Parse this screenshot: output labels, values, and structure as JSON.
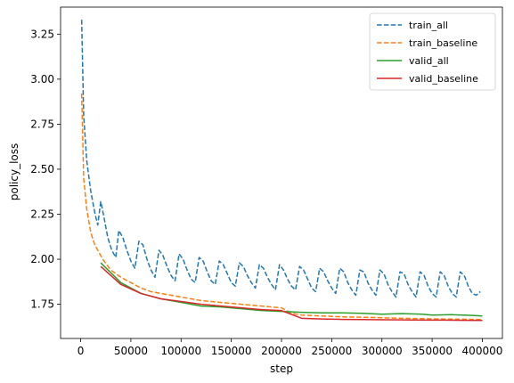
{
  "chart_data": {
    "type": "line",
    "xlabel": "step",
    "ylabel": "policy_loss",
    "xlim": [
      -20000,
      420000
    ],
    "ylim": [
      1.56,
      3.4
    ],
    "xticks": [
      0,
      50000,
      100000,
      150000,
      200000,
      250000,
      300000,
      350000,
      400000
    ],
    "xtick_labels": [
      "0",
      "50000",
      "100000",
      "150000",
      "200000",
      "250000",
      "300000",
      "350000",
      "400000"
    ],
    "yticks": [
      1.75,
      2.0,
      2.25,
      2.5,
      2.75,
      3.0,
      3.25
    ],
    "ytick_labels": [
      "1.75",
      "2.00",
      "2.25",
      "2.50",
      "2.75",
      "3.00",
      "3.25"
    ],
    "grid": false,
    "legend_position": "top-right",
    "series": [
      {
        "name": "train_all",
        "color": "#1f77b4",
        "style": "dashed",
        "x": [
          1000,
          3000,
          6000,
          10000,
          14000,
          17000,
          20000,
          23000,
          27000,
          31000,
          35000,
          38000,
          42000,
          46000,
          50000,
          54000,
          58000,
          62000,
          66000,
          70000,
          74000,
          78000,
          82000,
          86000,
          90000,
          94000,
          98000,
          102000,
          106000,
          110000,
          114000,
          118000,
          122000,
          126000,
          130000,
          134000,
          138000,
          142000,
          146000,
          150000,
          154000,
          158000,
          162000,
          166000,
          170000,
          174000,
          178000,
          182000,
          186000,
          190000,
          194000,
          198000,
          202000,
          206000,
          210000,
          214000,
          218000,
          222000,
          226000,
          230000,
          234000,
          238000,
          242000,
          246000,
          250000,
          254000,
          258000,
          262000,
          266000,
          270000,
          274000,
          278000,
          282000,
          286000,
          290000,
          294000,
          298000,
          302000,
          306000,
          310000,
          314000,
          318000,
          322000,
          326000,
          330000,
          334000,
          338000,
          342000,
          346000,
          350000,
          354000,
          358000,
          362000,
          366000,
          370000,
          374000,
          378000,
          382000,
          386000,
          390000,
          394000,
          398000
        ],
        "values": [
          3.33,
          2.8,
          2.55,
          2.38,
          2.26,
          2.19,
          2.32,
          2.24,
          2.12,
          2.05,
          2.01,
          2.16,
          2.12,
          2.05,
          1.99,
          1.95,
          2.1,
          2.08,
          2.0,
          1.94,
          1.9,
          2.05,
          2.02,
          1.96,
          1.91,
          1.88,
          2.03,
          2.0,
          1.94,
          1.89,
          1.87,
          2.01,
          1.99,
          1.93,
          1.88,
          1.86,
          1.99,
          1.97,
          1.92,
          1.87,
          1.85,
          1.98,
          1.96,
          1.91,
          1.87,
          1.84,
          1.97,
          1.95,
          1.9,
          1.86,
          1.83,
          1.97,
          1.94,
          1.89,
          1.85,
          1.83,
          1.96,
          1.94,
          1.89,
          1.84,
          1.82,
          1.95,
          1.93,
          1.88,
          1.84,
          1.81,
          1.95,
          1.93,
          1.87,
          1.83,
          1.8,
          1.94,
          1.93,
          1.87,
          1.83,
          1.8,
          1.94,
          1.92,
          1.86,
          1.82,
          1.79,
          1.93,
          1.92,
          1.86,
          1.82,
          1.79,
          1.93,
          1.91,
          1.85,
          1.81,
          1.79,
          1.93,
          1.91,
          1.85,
          1.81,
          1.79,
          1.93,
          1.91,
          1.85,
          1.81,
          1.8,
          1.82
        ]
      },
      {
        "name": "train_baseline",
        "color": "#ff7f0e",
        "style": "dashed",
        "x": [
          1000,
          3000,
          6000,
          10000,
          14000,
          18000,
          22000,
          26000,
          30000,
          35000,
          40000,
          50000,
          60000,
          70000,
          80000,
          90000,
          100000,
          110000,
          120000,
          130000,
          140000,
          150000,
          160000,
          170000,
          180000,
          190000,
          200000,
          210000,
          220000,
          240000,
          260000,
          280000,
          300000,
          320000,
          340000,
          360000,
          380000,
          400000
        ],
        "values": [
          2.92,
          2.45,
          2.28,
          2.15,
          2.08,
          2.04,
          2.0,
          1.97,
          1.94,
          1.92,
          1.9,
          1.87,
          1.84,
          1.82,
          1.81,
          1.8,
          1.79,
          1.78,
          1.77,
          1.765,
          1.76,
          1.755,
          1.75,
          1.745,
          1.74,
          1.735,
          1.73,
          1.7,
          1.69,
          1.685,
          1.68,
          1.678,
          1.675,
          1.672,
          1.67,
          1.668,
          1.667,
          1.665
        ]
      },
      {
        "name": "valid_all",
        "color": "#2ca02c",
        "style": "solid",
        "x": [
          20000,
          40000,
          60000,
          80000,
          100000,
          120000,
          140000,
          160000,
          180000,
          200000,
          220000,
          240000,
          260000,
          280000,
          300000,
          320000,
          340000,
          350000,
          370000,
          390000,
          400000
        ],
        "values": [
          1.98,
          1.87,
          1.81,
          1.78,
          1.76,
          1.74,
          1.735,
          1.725,
          1.715,
          1.71,
          1.705,
          1.702,
          1.702,
          1.7,
          1.695,
          1.698,
          1.695,
          1.69,
          1.692,
          1.688,
          1.685
        ]
      },
      {
        "name": "valid_baseline",
        "color": "#d62728",
        "style": "solid",
        "x": [
          20000,
          40000,
          60000,
          80000,
          100000,
          120000,
          140000,
          160000,
          180000,
          200000,
          220000,
          240000,
          260000,
          280000,
          300000,
          320000,
          340000,
          360000,
          380000,
          400000
        ],
        "values": [
          1.96,
          1.86,
          1.81,
          1.78,
          1.765,
          1.75,
          1.74,
          1.73,
          1.72,
          1.715,
          1.672,
          1.668,
          1.666,
          1.665,
          1.664,
          1.663,
          1.662,
          1.662,
          1.661,
          1.66
        ]
      }
    ]
  }
}
